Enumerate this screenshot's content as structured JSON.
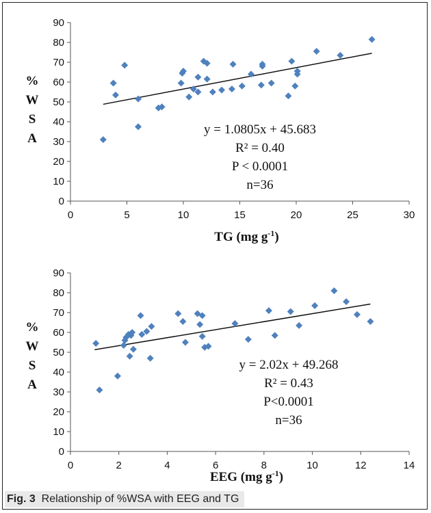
{
  "chart_data": [
    {
      "type": "scatter",
      "xlabel": "TG (mg g",
      "xlabel_sup": "-1",
      "xlabel_end": ")",
      "ylabel_letters": [
        "%",
        "W",
        "S",
        "A"
      ],
      "xlim": [
        0,
        30
      ],
      "ylim": [
        0,
        90
      ],
      "xticks": [
        0,
        5,
        10,
        15,
        20,
        25,
        30
      ],
      "yticks": [
        0,
        10,
        20,
        30,
        40,
        50,
        60,
        70,
        80,
        90
      ],
      "grid": false,
      "marker_color": "#4f81bd",
      "trendline": {
        "slope": 1.0805,
        "intercept": 45.683,
        "x_range": [
          2.9,
          26.7
        ]
      },
      "annotations": [
        "y = 1.0805x + 45.683",
        "R² = 0.40",
        "P < 0.0001",
        "n=36"
      ],
      "points": [
        [
          2.9,
          31
        ],
        [
          3.8,
          59.5
        ],
        [
          4.0,
          53.5
        ],
        [
          4.8,
          68.5
        ],
        [
          6.0,
          51.5
        ],
        [
          6.0,
          37.5
        ],
        [
          7.8,
          47
        ],
        [
          8.1,
          47.5
        ],
        [
          9.8,
          59.5
        ],
        [
          9.9,
          64.5
        ],
        [
          10.0,
          65.5
        ],
        [
          10.5,
          52.5
        ],
        [
          10.9,
          56.5
        ],
        [
          11.3,
          55
        ],
        [
          11.3,
          62.5
        ],
        [
          11.8,
          70.5
        ],
        [
          12.1,
          61.5
        ],
        [
          12.1,
          69.5
        ],
        [
          12.6,
          55
        ],
        [
          13.4,
          56
        ],
        [
          14.3,
          56.5
        ],
        [
          14.4,
          69
        ],
        [
          15.2,
          58
        ],
        [
          16.0,
          64
        ],
        [
          16.9,
          58.5
        ],
        [
          17.0,
          68
        ],
        [
          17.0,
          69
        ],
        [
          17.8,
          59.5
        ],
        [
          19.3,
          53
        ],
        [
          19.6,
          70.5
        ],
        [
          19.9,
          58
        ],
        [
          20.1,
          64
        ],
        [
          20.1,
          65.5
        ],
        [
          21.8,
          75.5
        ],
        [
          23.9,
          73.5
        ],
        [
          26.7,
          81.5
        ]
      ]
    },
    {
      "type": "scatter",
      "xlabel": "EEG (mg g",
      "xlabel_sup": "-1",
      "xlabel_end": ")",
      "ylabel_letters": [
        "%",
        "W",
        "S",
        "A"
      ],
      "xlim": [
        0,
        14
      ],
      "ylim": [
        0,
        90
      ],
      "xticks": [
        0,
        2,
        4,
        6,
        8,
        10,
        12,
        14
      ],
      "yticks": [
        0,
        10,
        20,
        30,
        40,
        50,
        60,
        70,
        80,
        90
      ],
      "grid": false,
      "marker_color": "#4f81bd",
      "trendline": {
        "slope": 2.02,
        "intercept": 49.268,
        "x_range": [
          1.0,
          12.4
        ]
      },
      "annotations": [
        "y = 2.02x + 49.268",
        "R² = 0.43",
        "P<0.0001",
        "n=36"
      ],
      "points": [
        [
          1.05,
          54.5
        ],
        [
          1.2,
          31
        ],
        [
          1.95,
          38
        ],
        [
          2.2,
          53.5
        ],
        [
          2.25,
          56
        ],
        [
          2.3,
          57.5
        ],
        [
          2.4,
          59
        ],
        [
          2.45,
          48
        ],
        [
          2.5,
          58.5
        ],
        [
          2.55,
          60
        ],
        [
          2.6,
          51.5
        ],
        [
          2.9,
          68.5
        ],
        [
          2.95,
          59
        ],
        [
          3.15,
          60.5
        ],
        [
          3.3,
          47
        ],
        [
          3.35,
          63
        ],
        [
          4.45,
          69.5
        ],
        [
          4.65,
          65.5
        ],
        [
          4.75,
          55
        ],
        [
          5.25,
          69.5
        ],
        [
          5.35,
          64
        ],
        [
          5.45,
          68.5
        ],
        [
          5.45,
          58
        ],
        [
          5.55,
          52.5
        ],
        [
          5.7,
          53
        ],
        [
          6.8,
          64.5
        ],
        [
          7.35,
          56.5
        ],
        [
          8.2,
          71
        ],
        [
          8.45,
          58.5
        ],
        [
          9.1,
          70.5
        ],
        [
          9.45,
          63.5
        ],
        [
          10.1,
          73.5
        ],
        [
          10.9,
          81
        ],
        [
          11.4,
          75.5
        ],
        [
          11.85,
          69
        ],
        [
          12.4,
          65.5
        ]
      ]
    }
  ],
  "caption": {
    "label": "Fig. 3",
    "text": "Relationship of %WSA with EEG and TG"
  }
}
